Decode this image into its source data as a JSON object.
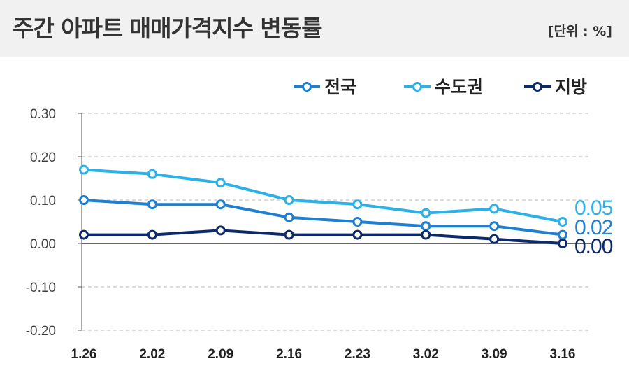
{
  "header": {
    "title": "주간 아파트 매매가격지수 변동률",
    "unit": "[단위 : %]"
  },
  "chart_data": {
    "type": "line",
    "categories": [
      "1.26",
      "2.02",
      "2.09",
      "2.16",
      "2.23",
      "3.02",
      "3.09",
      "3.16"
    ],
    "ylim": [
      -0.2,
      0.3
    ],
    "yticks": [
      "0.30",
      "0.20",
      "0.10",
      "0.00",
      "-0.10",
      "-0.20"
    ],
    "ytick_values": [
      0.3,
      0.2,
      0.1,
      0.0,
      -0.1,
      -0.2
    ],
    "grid": true,
    "legend_position": "top-right",
    "series": [
      {
        "name": "전국",
        "color": "#1f7fd0",
        "values": [
          0.1,
          0.09,
          0.09,
          0.06,
          0.05,
          0.04,
          0.04,
          0.02
        ],
        "end_label": "0.02"
      },
      {
        "name": "수도권",
        "color": "#2cb0e8",
        "values": [
          0.17,
          0.16,
          0.14,
          0.1,
          0.09,
          0.07,
          0.08,
          0.05
        ],
        "end_label": "0.05"
      },
      {
        "name": "지방",
        "color": "#0c2a6b",
        "values": [
          0.02,
          0.02,
          0.03,
          0.02,
          0.02,
          0.02,
          0.01,
          0.0
        ],
        "end_label": "0.00"
      }
    ]
  }
}
